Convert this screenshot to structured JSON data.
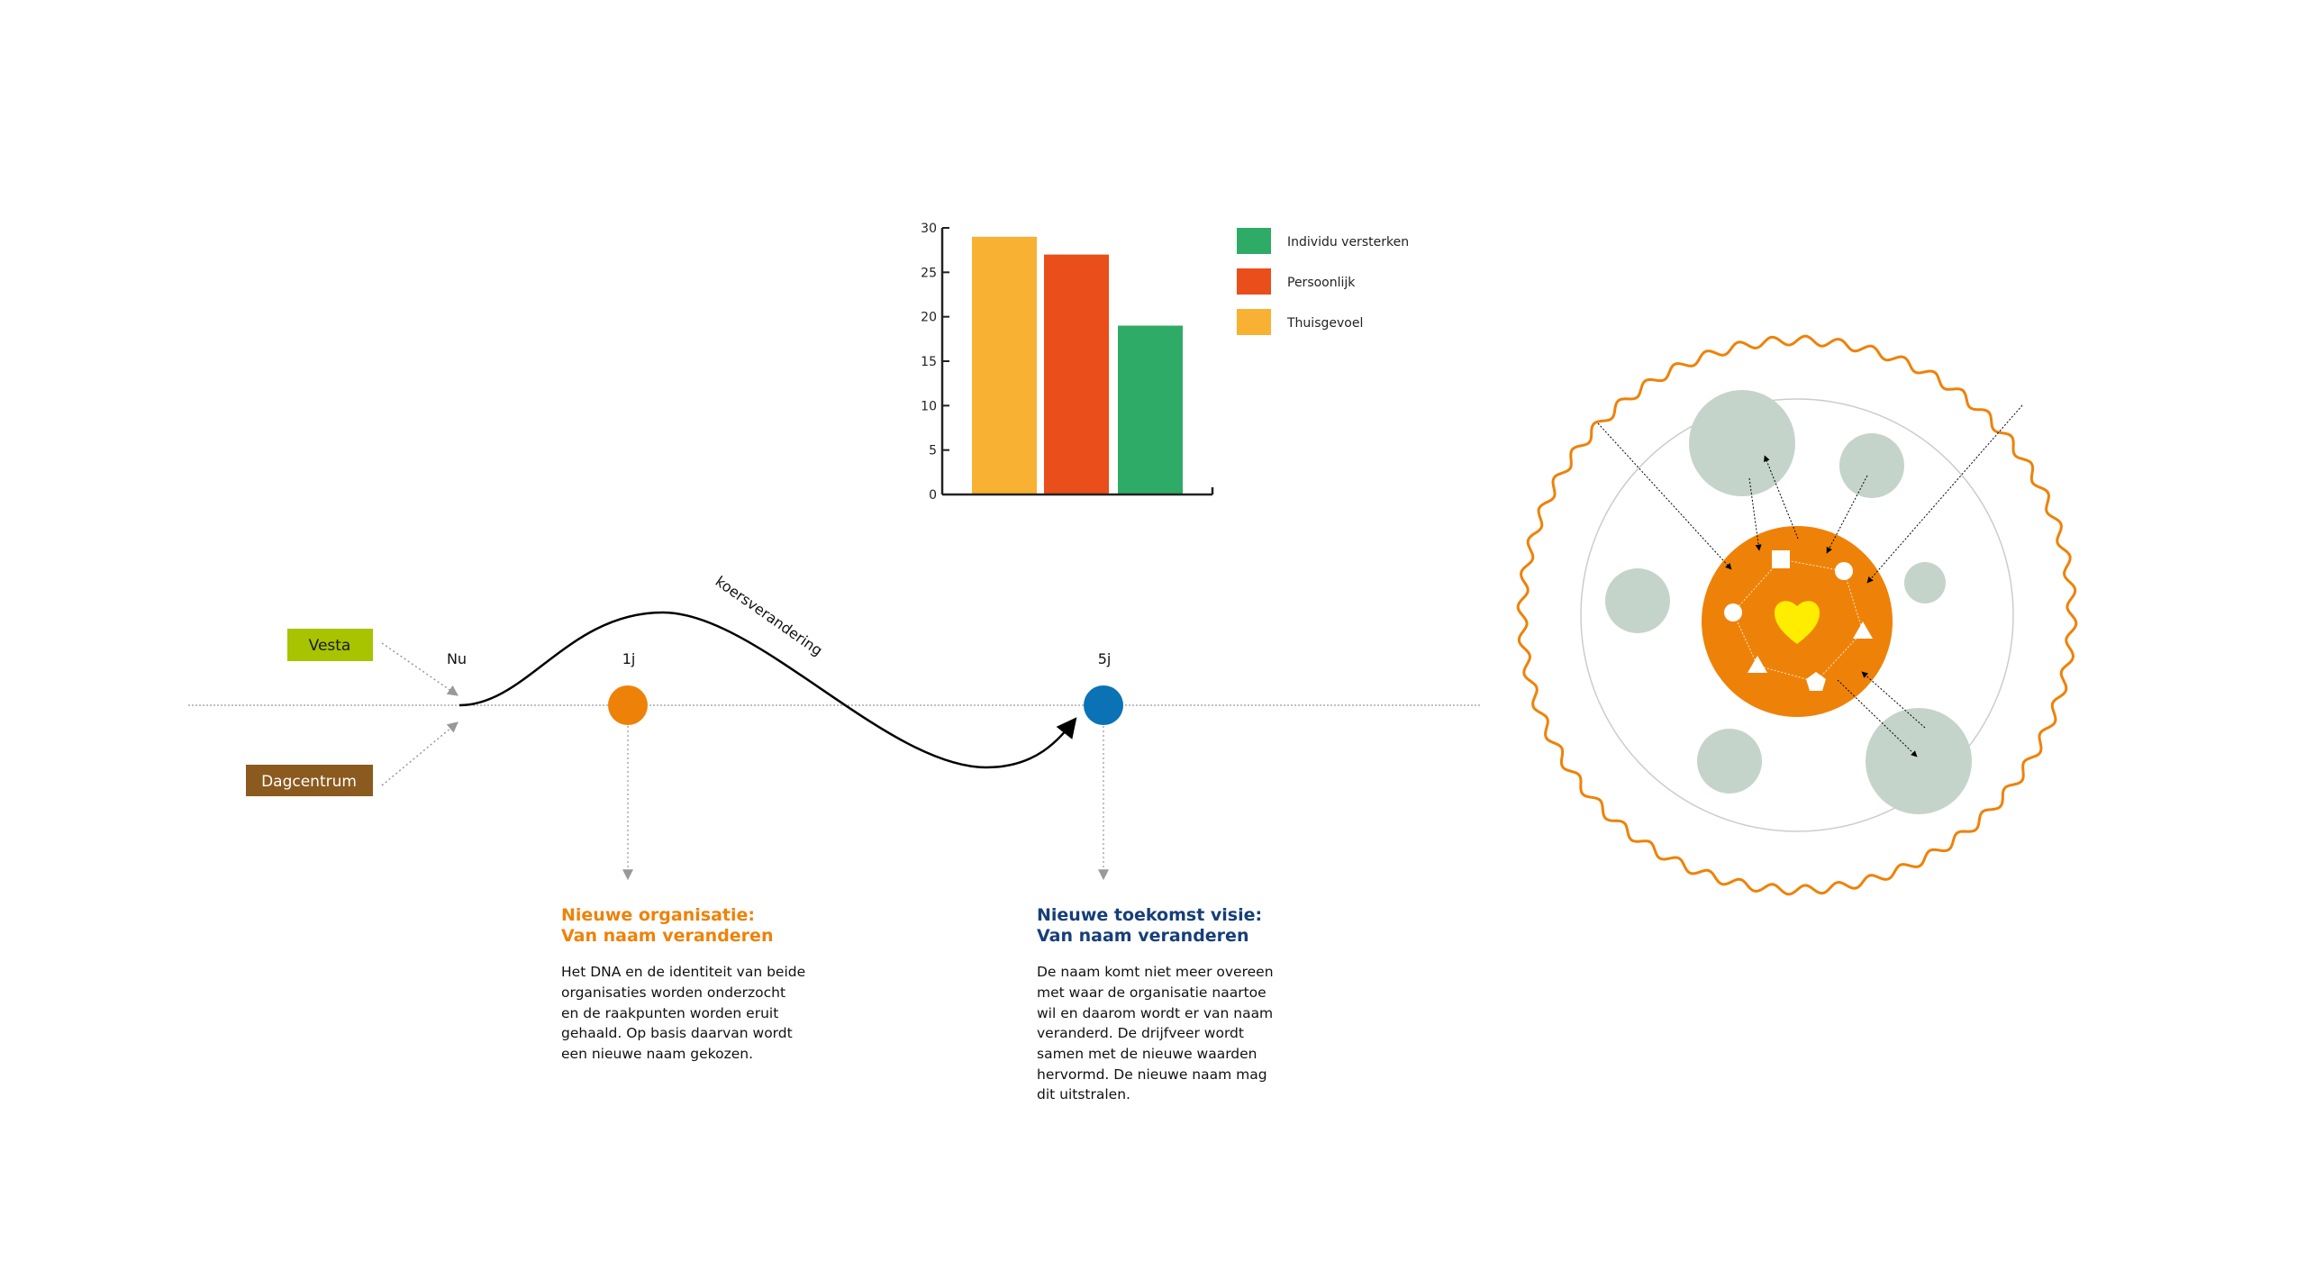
{
  "chart_data": {
    "type": "bar",
    "categories": [
      "Thuisgevoel",
      "Persoonlijk",
      "Individu versterken"
    ],
    "values": [
      29,
      27,
      19
    ],
    "colors": [
      "#F8B133",
      "#E94E1B",
      "#2EAB67"
    ],
    "ylim": [
      0,
      30
    ],
    "yticks": [
      "0",
      "5",
      "10",
      "15",
      "20",
      "25",
      "30"
    ],
    "legend": [
      {
        "label": "Individu versterken",
        "color": "#2EAB67"
      },
      {
        "label": "Persoonlijk",
        "color": "#E94E1B"
      },
      {
        "label": "Thuisgevoel",
        "color": "#F8B133"
      }
    ],
    "legend_position": "right",
    "grid": false
  },
  "timeline": {
    "sources": [
      {
        "label": "Vesta",
        "color": "#A8C400",
        "text_color": "#1a1a1a"
      },
      {
        "label": "Dagcentrum",
        "color": "#8A5A1F",
        "text_color": "#ffffff"
      }
    ],
    "start_label": "Nu",
    "curve_label": "koersverandering",
    "milestones": [
      {
        "label": "1j",
        "color": "#EE8208",
        "heading_color": "#EE8208",
        "heading": [
          "Nieuwe organisatie:",
          "Van naam veranderen"
        ],
        "body": [
          "Het DNA en de identiteit van beide",
          "organisaties worden onderzocht",
          "en de raakpunten worden eruit",
          "gehaald. Op basis daarvan wordt",
          "een nieuwe naam gekozen."
        ]
      },
      {
        "label": "5j",
        "color": "#0B72B5",
        "heading_color": "#163E7A",
        "heading": [
          "Nieuwe toekomst visie:",
          "Van naam veranderen"
        ],
        "body": [
          "De naam komt niet meer overeen",
          "met waar de organisatie naartoe",
          "wil en daarom wordt er van naam",
          "veranderd. De drijfveer wordt",
          "samen met de nieuwe waarden",
          "hervormd. De nieuwe naam mag",
          "dit uitstralen."
        ]
      }
    ]
  },
  "ring_diagram": {
    "core_color": "#EE8208",
    "heart_color": "#FFED00",
    "satellite_color": "#C5D4CA",
    "outer_color": "#EE8208"
  }
}
